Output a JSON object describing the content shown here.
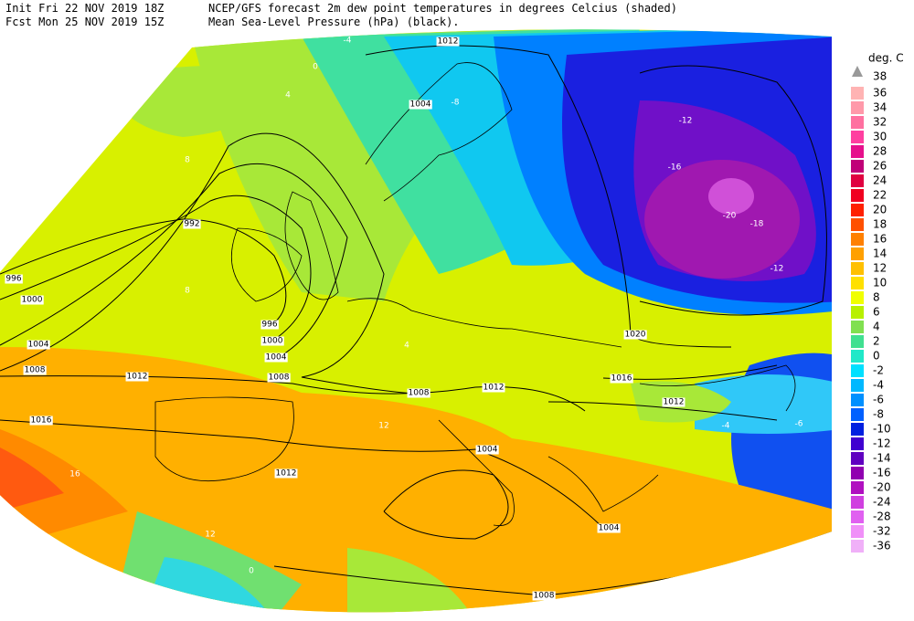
{
  "header": {
    "init": "Init  Fri 22 NOV 2019 18Z",
    "fcst": "Fcst Mon 25 NOV 2019 15Z",
    "title": "NCEP/GFS forecast 2m dew point temperatures in degrees Celcius (shaded)",
    "subtitle": "Mean Sea-Level Pressure (hPa) (black)."
  },
  "legend": {
    "title": "deg. C",
    "top_label": "38",
    "items": [
      {
        "label": "36",
        "color": "#ffb3b3"
      },
      {
        "label": "34",
        "color": "#ff99aa"
      },
      {
        "label": "32",
        "color": "#ff70a0"
      },
      {
        "label": "30",
        "color": "#ff3fa0"
      },
      {
        "label": "28",
        "color": "#e6108c"
      },
      {
        "label": "26",
        "color": "#c00078"
      },
      {
        "label": "24",
        "color": "#e00040"
      },
      {
        "label": "22",
        "color": "#f00020"
      },
      {
        "label": "20",
        "color": "#ff2000"
      },
      {
        "label": "18",
        "color": "#ff5000"
      },
      {
        "label": "16",
        "color": "#ff8000"
      },
      {
        "label": "14",
        "color": "#ffa000"
      },
      {
        "label": "12",
        "color": "#ffc000"
      },
      {
        "label": "10",
        "color": "#ffe000"
      },
      {
        "label": "8",
        "color": "#f0ff00"
      },
      {
        "label": "6",
        "color": "#b8f000"
      },
      {
        "label": "4",
        "color": "#80e050"
      },
      {
        "label": "2",
        "color": "#40e090"
      },
      {
        "label": "0",
        "color": "#20e8c8"
      },
      {
        "label": "-2",
        "color": "#00e0ff"
      },
      {
        "label": "-4",
        "color": "#00b8ff"
      },
      {
        "label": "-6",
        "color": "#0090ff"
      },
      {
        "label": "-8",
        "color": "#0060ff"
      },
      {
        "label": "-10",
        "color": "#0020e0"
      },
      {
        "label": "-12",
        "color": "#4000d0"
      },
      {
        "label": "-14",
        "color": "#6000c0"
      },
      {
        "label": "-16",
        "color": "#9000b0"
      },
      {
        "label": "-20",
        "color": "#b010c0"
      },
      {
        "label": "-24",
        "color": "#d040e0"
      },
      {
        "label": "-28",
        "color": "#e060f0"
      },
      {
        "label": "-32",
        "color": "#f090f8"
      },
      {
        "label": "-36",
        "color": "#f0b0f8"
      }
    ]
  },
  "isobar_labels": [
    "1012",
    "992",
    "996",
    "1000",
    "1004",
    "1008",
    "1012",
    "1016",
    "996",
    "1000",
    "1004",
    "1008",
    "1008",
    "1012",
    "1020",
    "1016",
    "1012",
    "1004",
    "1012",
    "1004",
    "1008",
    "1004"
  ],
  "dewpoint_labels": [
    "-4",
    "0",
    "4",
    "-8",
    "-12",
    "-16",
    "-20",
    "-18",
    "-12",
    "8",
    "8",
    "4",
    "12",
    "16",
    "12",
    "0",
    "-4",
    "-6"
  ]
}
